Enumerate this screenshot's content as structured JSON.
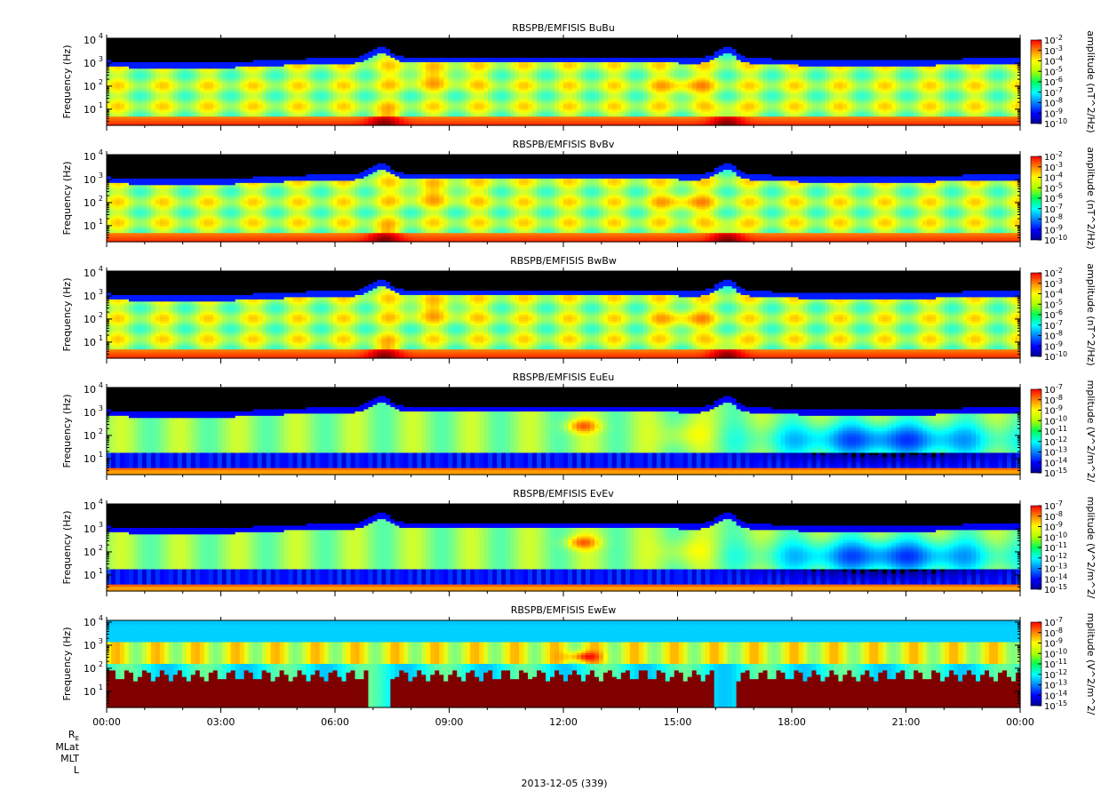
{
  "figure": {
    "date_label": "2013-12-05 (339)",
    "ephemeris_labels": [
      "R_E",
      "MLat",
      "MLT",
      "L"
    ]
  },
  "chart_data": [
    {
      "type": "heatmap",
      "title": "RBSPB/EMFISIS  BuBu",
      "ylabel": "Frequency (Hz)",
      "yscale": "log",
      "ylim": [
        2,
        12000
      ],
      "y_ticks": [
        {
          "label": "10",
          "exp": "1",
          "value": 10
        },
        {
          "label": "10",
          "exp": "2",
          "value": 100
        },
        {
          "label": "10",
          "exp": "3",
          "value": 1000
        },
        {
          "label": "10",
          "exp": "4",
          "value": 10000
        }
      ],
      "x_ticks": [
        "00:00",
        "03:00",
        "06:00",
        "09:00",
        "12:00",
        "15:00",
        "18:00",
        "21:00",
        "00:00"
      ],
      "xlim_hours": [
        0,
        24
      ],
      "colorbar": {
        "label": "amplitude (nT^2/Hz)",
        "scale": "log",
        "range_exp": [
          -10,
          -2
        ],
        "tick_exps": [
          "-2",
          "-3",
          "-4",
          "-5",
          "-6",
          "-7",
          "-8",
          "-9",
          "-10"
        ]
      },
      "profile": "B"
    },
    {
      "type": "heatmap",
      "title": "RBSPB/EMFISIS  BvBv",
      "ylabel": "Frequency (Hz)",
      "yscale": "log",
      "ylim": [
        2,
        12000
      ],
      "y_ticks": [
        {
          "label": "10",
          "exp": "1",
          "value": 10
        },
        {
          "label": "10",
          "exp": "2",
          "value": 100
        },
        {
          "label": "10",
          "exp": "3",
          "value": 1000
        },
        {
          "label": "10",
          "exp": "4",
          "value": 10000
        }
      ],
      "x_ticks": [
        "00:00",
        "03:00",
        "06:00",
        "09:00",
        "12:00",
        "15:00",
        "18:00",
        "21:00",
        "00:00"
      ],
      "xlim_hours": [
        0,
        24
      ],
      "colorbar": {
        "label": "amplitude (nT^2/Hz)",
        "scale": "log",
        "range_exp": [
          -10,
          -2
        ],
        "tick_exps": [
          "-2",
          "-3",
          "-4",
          "-5",
          "-6",
          "-7",
          "-8",
          "-9",
          "-10"
        ]
      },
      "profile": "B"
    },
    {
      "type": "heatmap",
      "title": "RBSPB/EMFISIS  BwBw",
      "ylabel": "Frequency (Hz)",
      "yscale": "log",
      "ylim": [
        2,
        12000
      ],
      "y_ticks": [
        {
          "label": "10",
          "exp": "1",
          "value": 10
        },
        {
          "label": "10",
          "exp": "2",
          "value": 100
        },
        {
          "label": "10",
          "exp": "3",
          "value": 1000
        },
        {
          "label": "10",
          "exp": "4",
          "value": 10000
        }
      ],
      "x_ticks": [
        "00:00",
        "03:00",
        "06:00",
        "09:00",
        "12:00",
        "15:00",
        "18:00",
        "21:00",
        "00:00"
      ],
      "xlim_hours": [
        0,
        24
      ],
      "colorbar": {
        "label": "amplitude (nT^2/Hz)",
        "scale": "log",
        "range_exp": [
          -10,
          -2
        ],
        "tick_exps": [
          "-2",
          "-3",
          "-4",
          "-5",
          "-6",
          "-7",
          "-8",
          "-9",
          "-10"
        ]
      },
      "profile": "B"
    },
    {
      "type": "heatmap",
      "title": "RBSPB/EMFISIS  EuEu",
      "ylabel": "Frequency (Hz)",
      "yscale": "log",
      "ylim": [
        2,
        12000
      ],
      "y_ticks": [
        {
          "label": "10",
          "exp": "1",
          "value": 10
        },
        {
          "label": "10",
          "exp": "2",
          "value": 100
        },
        {
          "label": "10",
          "exp": "3",
          "value": 1000
        },
        {
          "label": "10",
          "exp": "4",
          "value": 10000
        }
      ],
      "x_ticks": [
        "00:00",
        "03:00",
        "06:00",
        "09:00",
        "12:00",
        "15:00",
        "18:00",
        "21:00",
        "00:00"
      ],
      "xlim_hours": [
        0,
        24
      ],
      "colorbar": {
        "label": "mplitude (V^2/m^2/",
        "scale": "log",
        "range_exp": [
          -15,
          -7
        ],
        "tick_exps": [
          "-7",
          "-8",
          "-9",
          "-10",
          "-11",
          "-12",
          "-13",
          "-14",
          "-15"
        ]
      },
      "profile": "E"
    },
    {
      "type": "heatmap",
      "title": "RBSPB/EMFISIS  EvEv",
      "ylabel": "Frequency (Hz)",
      "yscale": "log",
      "ylim": [
        2,
        12000
      ],
      "y_ticks": [
        {
          "label": "10",
          "exp": "1",
          "value": 10
        },
        {
          "label": "10",
          "exp": "2",
          "value": 100
        },
        {
          "label": "10",
          "exp": "3",
          "value": 1000
        },
        {
          "label": "10",
          "exp": "4",
          "value": 10000
        }
      ],
      "x_ticks": [
        "00:00",
        "03:00",
        "06:00",
        "09:00",
        "12:00",
        "15:00",
        "18:00",
        "21:00",
        "00:00"
      ],
      "xlim_hours": [
        0,
        24
      ],
      "colorbar": {
        "label": "mplitude (V^2/m^2/",
        "scale": "log",
        "range_exp": [
          -15,
          -7
        ],
        "tick_exps": [
          "-7",
          "-8",
          "-9",
          "-10",
          "-11",
          "-12",
          "-13",
          "-14",
          "-15"
        ]
      },
      "profile": "E"
    },
    {
      "type": "heatmap",
      "title": "RBSPB/EMFISIS  EwEw",
      "ylabel": "Frequency (Hz)",
      "yscale": "log",
      "ylim": [
        2,
        12000
      ],
      "y_ticks": [
        {
          "label": "10",
          "exp": "1",
          "value": 10
        },
        {
          "label": "10",
          "exp": "2",
          "value": 100
        },
        {
          "label": "10",
          "exp": "3",
          "value": 1000
        },
        {
          "label": "10",
          "exp": "4",
          "value": 10000
        }
      ],
      "x_ticks": [
        "00:00",
        "03:00",
        "06:00",
        "09:00",
        "12:00",
        "15:00",
        "18:00",
        "21:00",
        "00:00"
      ],
      "x_tick_labels_shown": true,
      "xlim_hours": [
        0,
        24
      ],
      "colorbar": {
        "label": "mplitude (V^2/m^2/",
        "scale": "log",
        "range_exp": [
          -15,
          -7
        ],
        "tick_exps": [
          "-7",
          "-8",
          "-9",
          "-10",
          "-11",
          "-12",
          "-13",
          "-14",
          "-15"
        ]
      },
      "profile": "Ew"
    }
  ]
}
